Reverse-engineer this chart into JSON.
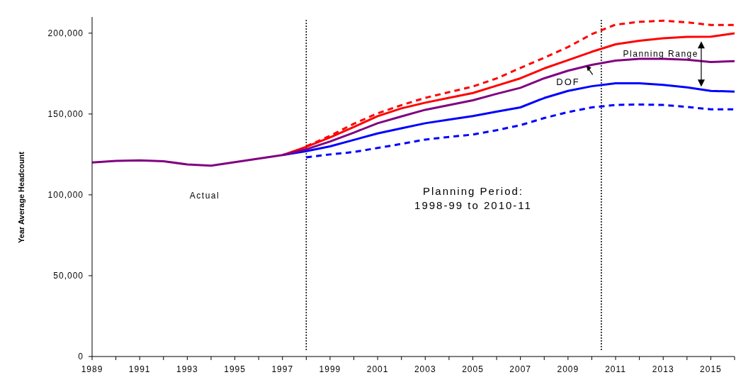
{
  "chart_data": {
    "type": "line",
    "ylabel": "Year Average Headcount",
    "xlim": [
      1989,
      2016
    ],
    "ylim": [
      0,
      210000
    ],
    "xticks": [
      1989,
      {
        "value": 1990,
        "label": null
      },
      1991,
      {
        "value": 1992,
        "label": null
      },
      1993,
      {
        "value": 1994,
        "label": null
      },
      1995,
      {
        "value": 1996,
        "label": null
      },
      1997,
      {
        "value": 1998,
        "label": null
      },
      1999,
      {
        "value": 2000,
        "label": null
      },
      2001,
      {
        "value": 2002,
        "label": null
      },
      2003,
      {
        "value": 2004,
        "label": null
      },
      2005,
      {
        "value": 2006,
        "label": null
      },
      2007,
      {
        "value": 2008,
        "label": null
      },
      2009,
      {
        "value": 2010,
        "label": null
      },
      2011,
      {
        "value": 2012,
        "label": null
      },
      2013,
      {
        "value": 2014,
        "label": null
      },
      2015,
      {
        "value": 2016,
        "label": null
      }
    ],
    "yticks": [
      0,
      {
        "value": 50000,
        "label": "50,000"
      },
      {
        "value": 100000,
        "label": "100,000"
      },
      {
        "value": 150000,
        "label": "150,000"
      },
      {
        "value": 200000,
        "label": "200,000"
      }
    ],
    "grid": false,
    "marker": "none",
    "series": [
      {
        "color": "#ff0000",
        "line_style": "dashed",
        "x": [
          1998,
          1999,
          2000,
          2001,
          2002,
          2003,
          2004,
          2005,
          2006,
          2007,
          2008,
          2009,
          2010,
          2011,
          2012,
          2013,
          2014,
          2015,
          2016
        ],
        "values": [
          130000,
          136500,
          144000,
          150400,
          155500,
          160000,
          163500,
          167000,
          172000,
          178500,
          184800,
          191400,
          199400,
          205300,
          207000,
          207700,
          206700,
          205100,
          205100
        ]
      },
      {
        "color": "#0000ff",
        "line_style": "dashed",
        "x": [
          1998,
          1999,
          2000,
          2001,
          2002,
          2003,
          2004,
          2005,
          2006,
          2007,
          2008,
          2009,
          2010,
          2011,
          2012,
          2013,
          2014,
          2015,
          2016
        ],
        "values": [
          123200,
          125000,
          126500,
          129000,
          131500,
          134200,
          135800,
          137300,
          140000,
          143100,
          147500,
          151200,
          154100,
          155600,
          155900,
          155600,
          154400,
          152900,
          152900
        ]
      },
      {
        "color": "#0000ff",
        "line_style": "solid",
        "x": [
          1997,
          1998,
          1999,
          2000,
          2001,
          2002,
          2003,
          2004,
          2005,
          2006,
          2007,
          2008,
          2009,
          2010,
          2011,
          2012,
          2013,
          2014,
          2015,
          2016
        ],
        "values": [
          124600,
          127000,
          130000,
          134000,
          138000,
          141200,
          144300,
          146500,
          148700,
          151500,
          154100,
          159900,
          164300,
          167200,
          169000,
          169000,
          168000,
          166500,
          164300,
          163900
        ]
      },
      {
        "color": "#ff0000",
        "line_style": "solid",
        "x": [
          1997,
          1998,
          1999,
          2000,
          2001,
          2002,
          2003,
          2004,
          2005,
          2006,
          2007,
          2008,
          2009,
          2010,
          2011,
          2012,
          2013,
          2014,
          2015,
          2016
        ],
        "values": [
          124600,
          129700,
          135500,
          142000,
          148700,
          153500,
          157000,
          160000,
          163000,
          167500,
          172100,
          178200,
          183300,
          188500,
          193100,
          195300,
          196800,
          197700,
          197800,
          199900
        ]
      },
      {
        "color": "#800080",
        "line_style": "solid",
        "x": [
          1989,
          1990,
          1991,
          1992,
          1993,
          1994,
          1995,
          1996,
          1997,
          1998,
          1999,
          2000,
          2001,
          2002,
          2003,
          2004,
          2005,
          2006,
          2007,
          2008,
          2009,
          2010,
          2011,
          2012,
          2013,
          2014,
          2015,
          2016
        ],
        "values": [
          120000,
          121000,
          121300,
          120800,
          118800,
          118000,
          120200,
          122400,
          124600,
          128200,
          133000,
          138500,
          144300,
          148500,
          152600,
          155500,
          158500,
          162500,
          166200,
          172100,
          176800,
          180400,
          183000,
          184100,
          184100,
          183600,
          182200,
          182700
        ]
      }
    ],
    "ref_lines": [
      {
        "axis": "x",
        "value": 1998,
        "color": "#000000",
        "line_style": "dotted"
      },
      {
        "axis": "x",
        "value": 2010.4,
        "color": "#000000",
        "line_style": "dotted"
      }
    ],
    "annotations": [
      "Actual",
      "Planning Period:\n1998-99 to 2010-11",
      {
        "text": "Planning Range",
        "x": 2014.6,
        "y": 195000
      },
      {
        "text": "DOF",
        "x": 2009.8,
        "y": 180000
      }
    ]
  }
}
